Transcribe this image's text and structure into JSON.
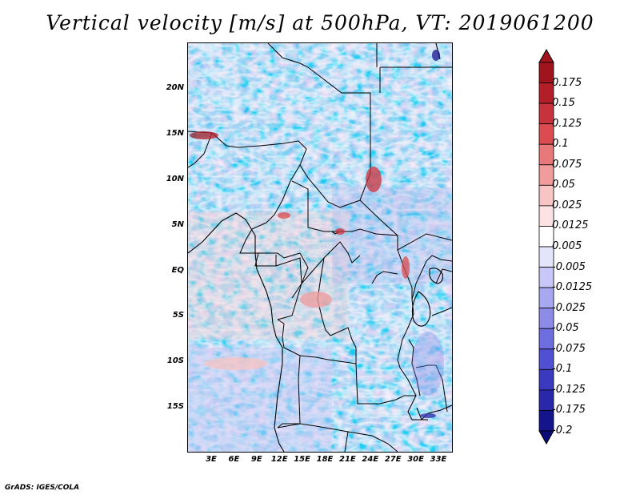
{
  "title": "Vertical velocity [m/s] at 500hPa, VT: 2019061200",
  "credit": "GrADS: IGES/COLA",
  "map": {
    "lat_ticks": [
      "20N",
      "15N",
      "10N",
      "5N",
      "EQ",
      "5S",
      "10S",
      "15S"
    ],
    "lon_ticks": [
      "3E",
      "6E",
      "9E",
      "12E",
      "15E",
      "18E",
      "21E",
      "24E",
      "27E",
      "30E",
      "33E"
    ]
  },
  "colorbar": {
    "labels": [
      "0.175",
      "0.15",
      "0.125",
      "0.1",
      "0.075",
      "0.05",
      "0.025",
      "0.0125",
      "0.005",
      "-0.005",
      "-0.0125",
      "-0.025",
      "-0.05",
      "-0.075",
      "-0.1",
      "-0.125",
      "-0.175",
      "-0.2"
    ],
    "colors": [
      "#a0141e",
      "#b41e28",
      "#c8323c",
      "#dc4b50",
      "#e8787a",
      "#f09c9c",
      "#f8c4c4",
      "#fce2e2",
      "#ffffff",
      "#e4e4fc",
      "#c8c8f8",
      "#a8a8f0",
      "#8c8ce8",
      "#6e6ee0",
      "#5050d2",
      "#3a3ac0",
      "#2828a8",
      "#14148c"
    ]
  }
}
